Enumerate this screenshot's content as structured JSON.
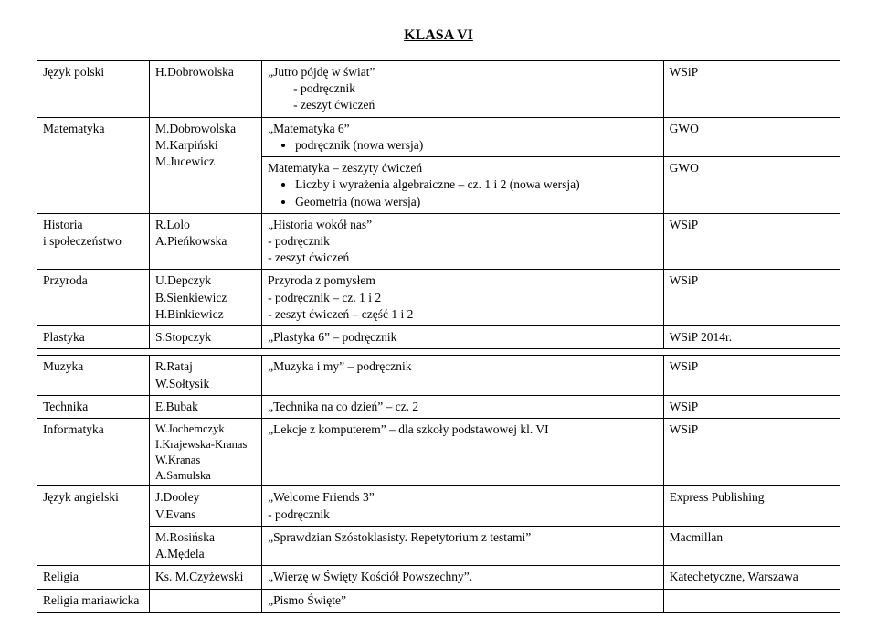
{
  "title": "KLASA VI",
  "rows": {
    "r0": {
      "subject": "Język polski",
      "author": "H.Dobrowolska",
      "book_title": "„Jutro pójdę w świat”",
      "dash1": "podręcznik",
      "dash2": "zeszyt ćwiczeń",
      "publisher": "WSiP"
    },
    "r1": {
      "subject": "Matematyka",
      "a1": "M.Dobrowolska",
      "a2": "M.Karpiński",
      "a3": "M.Jucewicz",
      "book1_title": "„Matematyka 6”",
      "book1_b1": "podręcznik (nowa wersja)",
      "pub1": "GWO",
      "book2_title": "Matematyka – zeszyty ćwiczeń",
      "book2_b1": "Liczby i wyrażenia algebraiczne – cz. 1 i 2 (nowa wersja)",
      "book2_b2": "Geometria (nowa wersja)",
      "pub2": "GWO"
    },
    "r2": {
      "subject1": "Historia",
      "subject2": "i społeczeństwo",
      "a1": "R.Lolo",
      "a2": "A.Pieńkowska",
      "b1": "„Historia wokół nas”",
      "b2": "- podręcznik",
      "b3": "- zeszyt ćwiczeń",
      "pub": "WSiP"
    },
    "r3": {
      "subject": "Przyroda",
      "a1": "U.Depczyk",
      "a2": "B.Sienkiewicz",
      "a3": "H.Binkiewicz",
      "b1": "Przyroda z pomysłem",
      "b2": "- podręcznik – cz. 1 i 2",
      "b3": "- zeszyt ćwiczeń – część 1 i 2",
      "pub": "WSiP"
    },
    "r4": {
      "subject": "Plastyka",
      "author": "S.Stopczyk",
      "book": "„Plastyka 6” – podręcznik",
      "pub": "WSiP 2014r."
    },
    "r5": {
      "subject": "Muzyka",
      "a1": "R.Rataj",
      "a2": "W.Sołtysik",
      "book": "„Muzyka i my” – podręcznik",
      "pub": "WSiP"
    },
    "r6": {
      "subject": "Technika",
      "author": "E.Bubak",
      "book": "„Technika na co dzień” – cz. 2",
      "pub": "WSiP"
    },
    "r7": {
      "subject": "Informatyka",
      "a1": "W.Jochemczyk",
      "a2": "I.Krajewska-Kranas",
      "a3": "W.Kranas",
      "a4": "A.Samulska",
      "book": "„Lekcje z komputerem” – dla szkoły podstawowej kl. VI",
      "pub": "WSiP"
    },
    "r8": {
      "subject": "Język angielski",
      "a1": "J.Dooley",
      "a2": "V.Evans",
      "b1": "„Welcome Friends 3”",
      "b2": "- podręcznik",
      "pub": " Express Publishing"
    },
    "r9": {
      "a1": "M.Rosińska",
      "a2": "A.Mędela",
      "book": "„Sprawdzian Szóstoklasisty. Repetytorium z testami”",
      "pub": "Macmillan"
    },
    "r10": {
      "subject": "Religia",
      "author": "Ks. M.Czyżewski",
      "book": "„Wierzę w Święty Kościół Powszechny”.",
      "pub": "Katechetyczne, Warszawa"
    },
    "r11": {
      "subject": "Religia mariawicka",
      "book": "„Pismo Święte”"
    }
  }
}
